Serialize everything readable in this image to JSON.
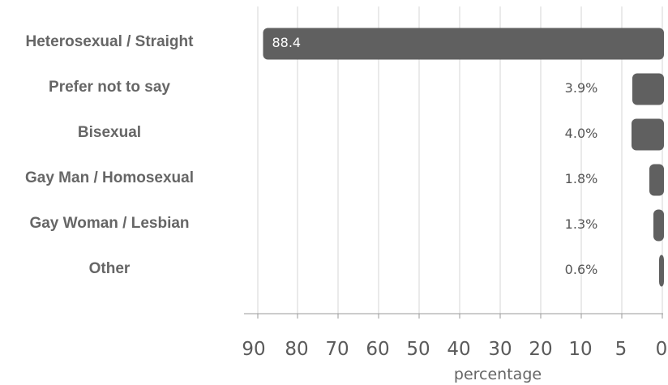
{
  "chart_data": {
    "type": "bar",
    "orientation": "horizontal",
    "categories": [
      "Heterosexual / Straight",
      "Prefer not to say",
      "Bisexual",
      "Gay Man / Homosexual",
      "Gay Woman / Lesbian",
      "Other"
    ],
    "values": [
      88.4,
      3.9,
      4.0,
      1.8,
      1.3,
      0.6
    ],
    "value_labels": [
      "88.4",
      "3.9%",
      "4.0%",
      "1.8%",
      "1.3%",
      "0.6%"
    ],
    "xlabel": "percentage",
    "x_ticks": [
      "90",
      "80",
      "70",
      "60",
      "50",
      "40",
      "30",
      "20",
      "10",
      "5",
      "0"
    ],
    "x_reversed": true,
    "grid": true,
    "bar_color": "#606060"
  }
}
